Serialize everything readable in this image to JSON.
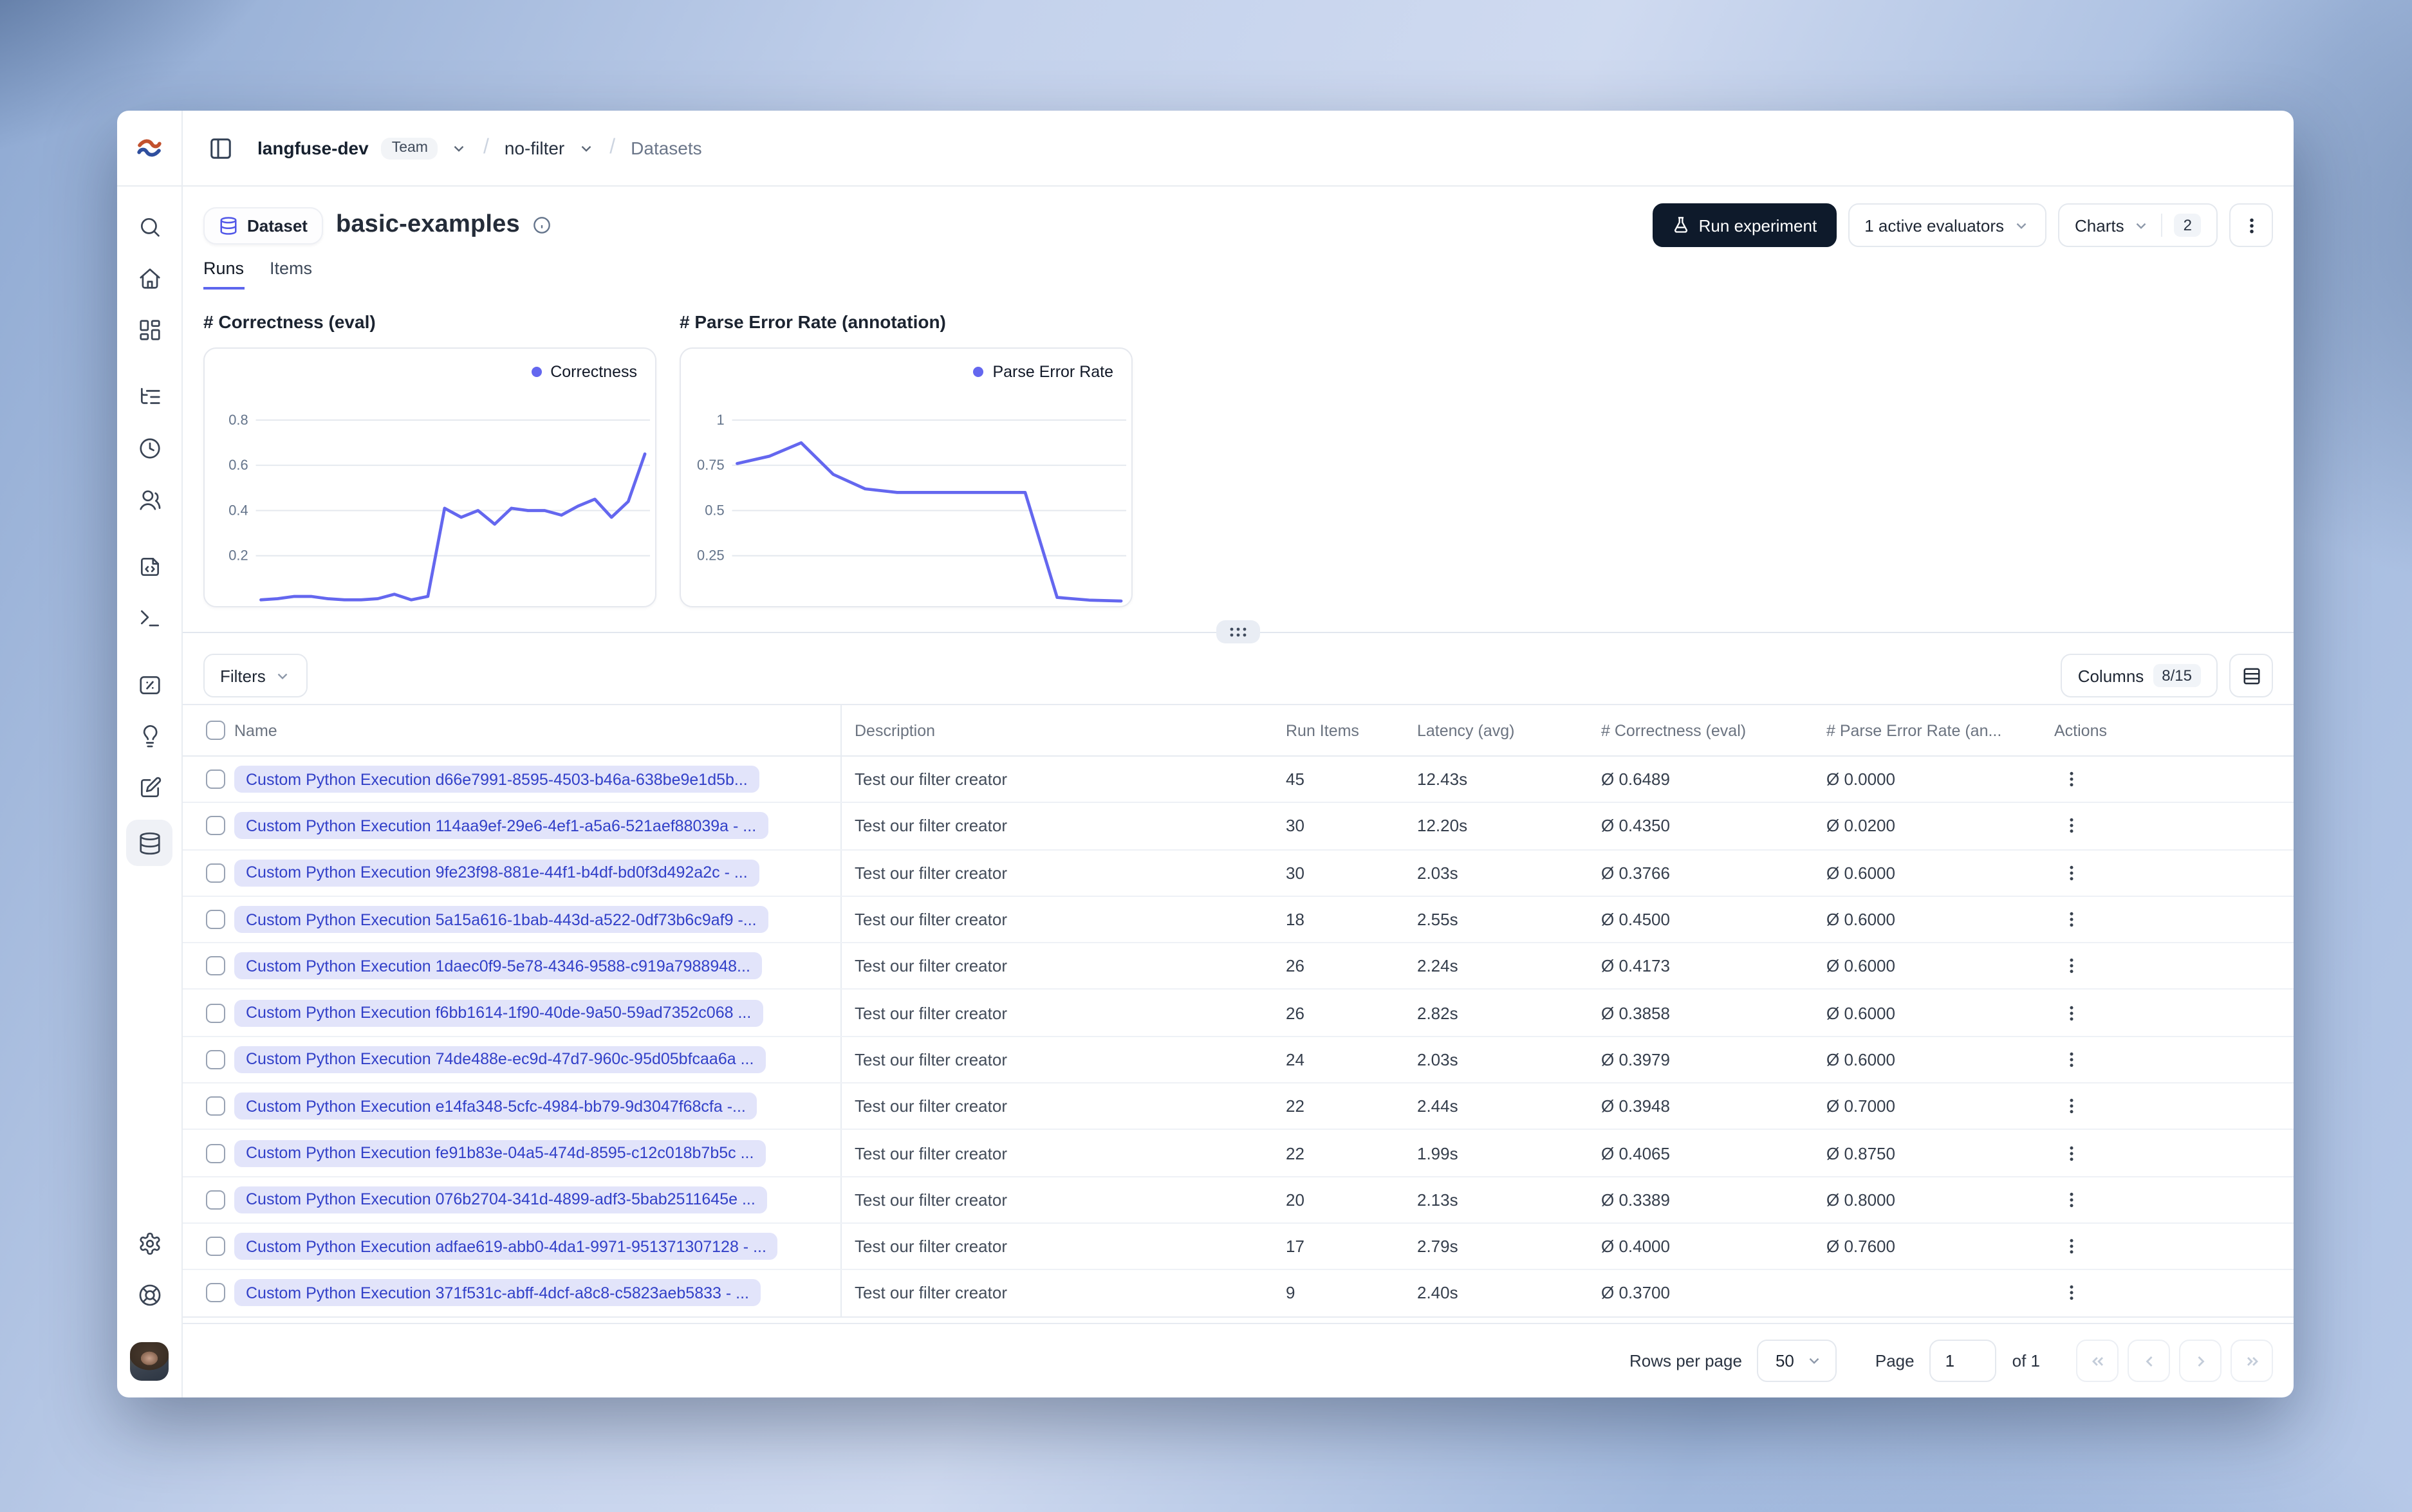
{
  "topbar": {
    "org": "langfuse-dev",
    "org_badge": "Team",
    "project": "no-filter",
    "section": "Datasets",
    "separator": "/"
  },
  "sidebar": {
    "items": [
      {
        "icon": "search",
        "group_start": false
      },
      {
        "icon": "home",
        "group_start": false
      },
      {
        "icon": "dashboard",
        "group_start": false
      },
      {
        "icon": "tracing",
        "group_start": true
      },
      {
        "icon": "sessions",
        "group_start": false
      },
      {
        "icon": "users",
        "group_start": false
      },
      {
        "icon": "prompts",
        "group_start": true
      },
      {
        "icon": "playground",
        "group_start": false
      },
      {
        "icon": "scores",
        "group_start": true
      },
      {
        "icon": "evaluation",
        "group_start": false
      },
      {
        "icon": "annotation",
        "group_start": false
      },
      {
        "icon": "datasets",
        "group_start": false,
        "active": true
      }
    ],
    "bottom_items": [
      {
        "icon": "settings"
      },
      {
        "icon": "support"
      }
    ]
  },
  "page": {
    "entity_badge": "Dataset",
    "title": "basic-examples",
    "tabs": [
      {
        "label": "Runs",
        "active": true
      },
      {
        "label": "Items",
        "active": false
      }
    ],
    "actions": {
      "run_experiment": "Run experiment",
      "evaluators": "1 active evaluators",
      "charts": "Charts",
      "charts_count": "2"
    }
  },
  "chart_data": [
    {
      "type": "line",
      "title": "# Correctness (eval)",
      "legend": "Correctness",
      "color": "#6467ef",
      "yticks": [
        0.2,
        0.4,
        0.6,
        0.8
      ],
      "ylim": [
        0,
        0.88
      ],
      "grid": true,
      "legend_position": "top-right",
      "values": [
        0.005,
        0.01,
        0.02,
        0.02,
        0.01,
        0.005,
        0.005,
        0.01,
        0.03,
        0.005,
        0.02,
        0.41,
        0.37,
        0.4,
        0.34,
        0.41,
        0.4,
        0.4,
        0.38,
        0.42,
        0.45,
        0.37,
        0.44,
        0.65
      ]
    },
    {
      "type": "line",
      "title": "# Parse Error Rate (annotation)",
      "legend": "Parse Error Rate",
      "color": "#6467ef",
      "yticks": [
        0.25,
        0.5,
        0.75,
        1
      ],
      "ylim": [
        0,
        1.1
      ],
      "grid": true,
      "legend_position": "top-right",
      "values": [
        0.76,
        0.8,
        0.875,
        0.7,
        0.62,
        0.6,
        0.6,
        0.6,
        0.6,
        0.6,
        0.02,
        0.005,
        0.0
      ]
    }
  ],
  "toolbar": {
    "filters_label": "Filters",
    "columns_label": "Columns",
    "columns_badge": "8/15"
  },
  "table": {
    "headers": [
      "Name",
      "Description",
      "Run Items",
      "Latency (avg)",
      "# Correctness (eval)",
      "# Parse Error Rate (an...",
      "Actions"
    ],
    "rows": [
      {
        "name": "Custom Python Execution d66e7991-8595-4503-b46a-638be9e1d5b...",
        "description": "Test our filter creator",
        "run_items": "45",
        "latency": "12.43s",
        "correctness": "Ø 0.6489",
        "parse_error_rate": "Ø 0.0000"
      },
      {
        "name": "Custom Python Execution 114aa9ef-29e6-4ef1-a5a6-521aef88039a - ...",
        "description": "Test our filter creator",
        "run_items": "30",
        "latency": "12.20s",
        "correctness": "Ø 0.4350",
        "parse_error_rate": "Ø 0.0200"
      },
      {
        "name": "Custom Python Execution 9fe23f98-881e-44f1-b4df-bd0f3d492a2c - ...",
        "description": "Test our filter creator",
        "run_items": "30",
        "latency": "2.03s",
        "correctness": "Ø 0.3766",
        "parse_error_rate": "Ø 0.6000"
      },
      {
        "name": "Custom Python Execution 5a15a616-1bab-443d-a522-0df73b6c9af9 -...",
        "description": "Test our filter creator",
        "run_items": "18",
        "latency": "2.55s",
        "correctness": "Ø 0.4500",
        "parse_error_rate": "Ø 0.6000"
      },
      {
        "name": "Custom Python Execution 1daec0f9-5e78-4346-9588-c919a7988948...",
        "description": "Test our filter creator",
        "run_items": "26",
        "latency": "2.24s",
        "correctness": "Ø 0.4173",
        "parse_error_rate": "Ø 0.6000"
      },
      {
        "name": "Custom Python Execution f6bb1614-1f90-40de-9a50-59ad7352c068 ...",
        "description": "Test our filter creator",
        "run_items": "26",
        "latency": "2.82s",
        "correctness": "Ø 0.3858",
        "parse_error_rate": "Ø 0.6000"
      },
      {
        "name": "Custom Python Execution 74de488e-ec9d-47d7-960c-95d05bfcaa6a ...",
        "description": "Test our filter creator",
        "run_items": "24",
        "latency": "2.03s",
        "correctness": "Ø 0.3979",
        "parse_error_rate": "Ø 0.6000"
      },
      {
        "name": "Custom Python Execution e14fa348-5cfc-4984-bb79-9d3047f68cfa -...",
        "description": "Test our filter creator",
        "run_items": "22",
        "latency": "2.44s",
        "correctness": "Ø 0.3948",
        "parse_error_rate": "Ø 0.7000"
      },
      {
        "name": "Custom Python Execution fe91b83e-04a5-474d-8595-c12c018b7b5c ...",
        "description": "Test our filter creator",
        "run_items": "22",
        "latency": "1.99s",
        "correctness": "Ø 0.4065",
        "parse_error_rate": "Ø 0.8750"
      },
      {
        "name": "Custom Python Execution 076b2704-341d-4899-adf3-5bab2511645e ...",
        "description": "Test our filter creator",
        "run_items": "20",
        "latency": "2.13s",
        "correctness": "Ø 0.3389",
        "parse_error_rate": "Ø 0.8000"
      },
      {
        "name": "Custom Python Execution adfae619-abb0-4da1-9971-951371307128 - ...",
        "description": "Test our filter creator",
        "run_items": "17",
        "latency": "2.79s",
        "correctness": "Ø 0.4000",
        "parse_error_rate": "Ø 0.7600"
      },
      {
        "name": "Custom Python Execution 371f531c-abff-4dcf-a8c8-c5823aeb5833 - ...",
        "description": "Test our filter creator",
        "run_items": "9",
        "latency": "2.40s",
        "correctness": "Ø 0.3700",
        "parse_error_rate": ""
      }
    ]
  },
  "pagination": {
    "rows_per_page_label": "Rows per page",
    "rows_per_page_value": "50",
    "page_label": "Page",
    "page_value": "1",
    "of_label": "of 1"
  },
  "colors": {
    "accent": "#6467ef",
    "run_experiment_bg": "#0e1a2b",
    "name_badge_bg": "#e2e4fa",
    "name_badge_text": "#3240c8"
  }
}
